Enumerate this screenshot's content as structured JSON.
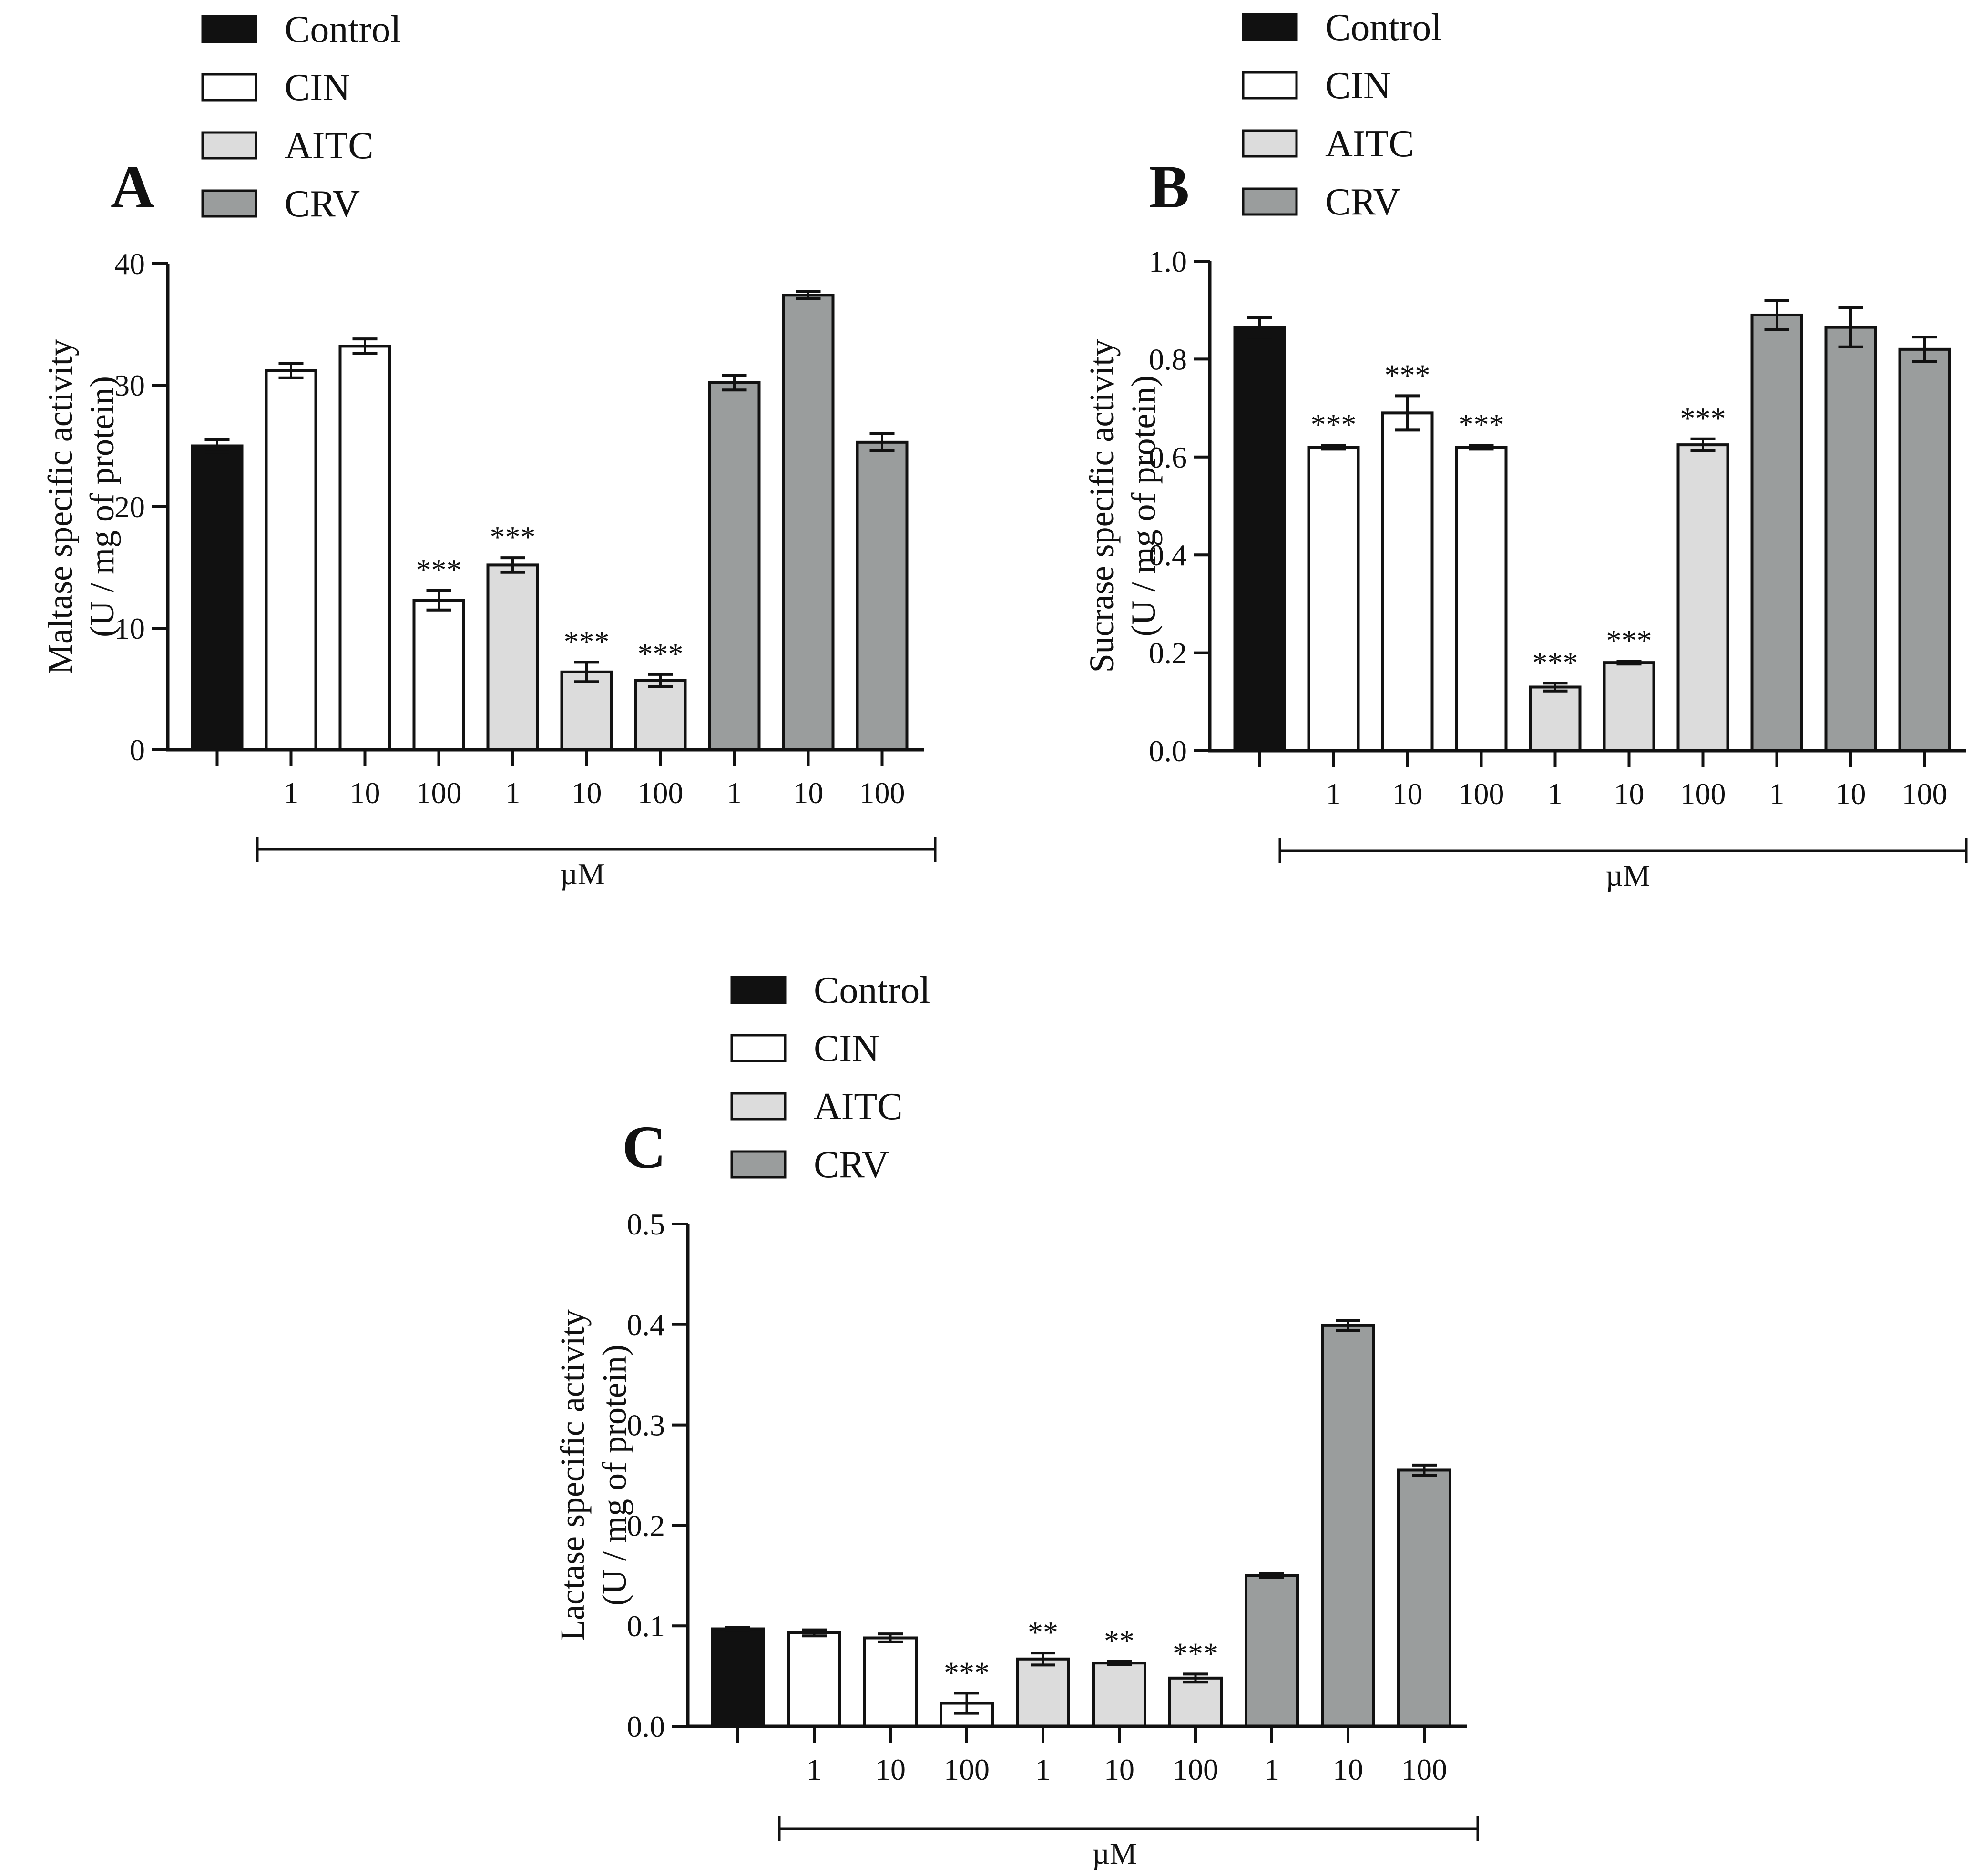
{
  "palette": {
    "Control": "#111111",
    "CIN": "#ffffff",
    "AITC": "#dcdcdc",
    "CRV": "#9a9d9d"
  },
  "chart_data": [
    {
      "type": "bar",
      "panel": "A",
      "ylabel_line1": "Maltase specific activity",
      "ylabel_line2": "(U / mg of protein)",
      "ylim": [
        0,
        40
      ],
      "yticks": [
        "0",
        "10",
        "20",
        "30",
        "40"
      ],
      "unit_label": "µM",
      "legend": [
        "Control",
        "CIN",
        "AITC",
        "CRV"
      ],
      "bars": [
        {
          "group": "Control",
          "label": "",
          "value": 25.0,
          "err": 0.5,
          "sig": ""
        },
        {
          "group": "CIN",
          "label": "1",
          "value": 31.2,
          "err": 0.6,
          "sig": ""
        },
        {
          "group": "CIN",
          "label": "10",
          "value": 33.2,
          "err": 0.6,
          "sig": ""
        },
        {
          "group": "CIN",
          "label": "100",
          "value": 12.3,
          "err": 0.8,
          "sig": "***"
        },
        {
          "group": "AITC",
          "label": "1",
          "value": 15.2,
          "err": 0.6,
          "sig": "***"
        },
        {
          "group": "AITC",
          "label": "10",
          "value": 6.4,
          "err": 0.8,
          "sig": "***"
        },
        {
          "group": "AITC",
          "label": "100",
          "value": 5.7,
          "err": 0.5,
          "sig": "***"
        },
        {
          "group": "CRV",
          "label": "1",
          "value": 30.2,
          "err": 0.6,
          "sig": ""
        },
        {
          "group": "CRV",
          "label": "10",
          "value": 37.4,
          "err": 0.3,
          "sig": ""
        },
        {
          "group": "CRV",
          "label": "100",
          "value": 25.3,
          "err": 0.7,
          "sig": ""
        }
      ]
    },
    {
      "type": "bar",
      "panel": "B",
      "ylabel_line1": "Sucrase specific activity",
      "ylabel_line2": "(U / mg of protein)",
      "ylim": [
        0,
        1.0
      ],
      "yticks": [
        "0.0",
        "0.2",
        "0.4",
        "0.6",
        "0.8",
        "1.0"
      ],
      "unit_label": "µM",
      "legend": [
        "Control",
        "CIN",
        "AITC",
        "CRV"
      ],
      "bars": [
        {
          "group": "Control",
          "label": "",
          "value": 0.865,
          "err": 0.02,
          "sig": ""
        },
        {
          "group": "CIN",
          "label": "1",
          "value": 0.62,
          "err": 0.004,
          "sig": "***"
        },
        {
          "group": "CIN",
          "label": "10",
          "value": 0.69,
          "err": 0.035,
          "sig": "***"
        },
        {
          "group": "CIN",
          "label": "100",
          "value": 0.62,
          "err": 0.004,
          "sig": "***"
        },
        {
          "group": "AITC",
          "label": "1",
          "value": 0.13,
          "err": 0.008,
          "sig": "***"
        },
        {
          "group": "AITC",
          "label": "10",
          "value": 0.18,
          "err": 0.003,
          "sig": "***"
        },
        {
          "group": "AITC",
          "label": "100",
          "value": 0.625,
          "err": 0.012,
          "sig": "***"
        },
        {
          "group": "CRV",
          "label": "1",
          "value": 0.89,
          "err": 0.03,
          "sig": ""
        },
        {
          "group": "CRV",
          "label": "10",
          "value": 0.865,
          "err": 0.04,
          "sig": ""
        },
        {
          "group": "CRV",
          "label": "100",
          "value": 0.82,
          "err": 0.025,
          "sig": ""
        }
      ]
    },
    {
      "type": "bar",
      "panel": "C",
      "ylabel_line1": "Lactase specific  activity",
      "ylabel_line2": "(U / mg of protein)",
      "ylim": [
        0,
        0.5
      ],
      "yticks": [
        "0.0",
        "0.1",
        "0.2",
        "0.3",
        "0.4",
        "0.5"
      ],
      "unit_label": "µM",
      "legend": [
        "Control",
        "CIN",
        "AITC",
        "CRV"
      ],
      "bars": [
        {
          "group": "Control",
          "label": "",
          "value": 0.097,
          "err": 0.0015,
          "sig": ""
        },
        {
          "group": "CIN",
          "label": "1",
          "value": 0.093,
          "err": 0.003,
          "sig": ""
        },
        {
          "group": "CIN",
          "label": "10",
          "value": 0.088,
          "err": 0.004,
          "sig": ""
        },
        {
          "group": "CIN",
          "label": "100",
          "value": 0.023,
          "err": 0.01,
          "sig": "***"
        },
        {
          "group": "AITC",
          "label": "1",
          "value": 0.067,
          "err": 0.006,
          "sig": "**"
        },
        {
          "group": "AITC",
          "label": "10",
          "value": 0.063,
          "err": 0.0015,
          "sig": "**"
        },
        {
          "group": "AITC",
          "label": "100",
          "value": 0.048,
          "err": 0.004,
          "sig": "***"
        },
        {
          "group": "CRV",
          "label": "1",
          "value": 0.15,
          "err": 0.002,
          "sig": ""
        },
        {
          "group": "CRV",
          "label": "10",
          "value": 0.399,
          "err": 0.005,
          "sig": ""
        },
        {
          "group": "CRV",
          "label": "100",
          "value": 0.255,
          "err": 0.005,
          "sig": ""
        }
      ]
    }
  ]
}
